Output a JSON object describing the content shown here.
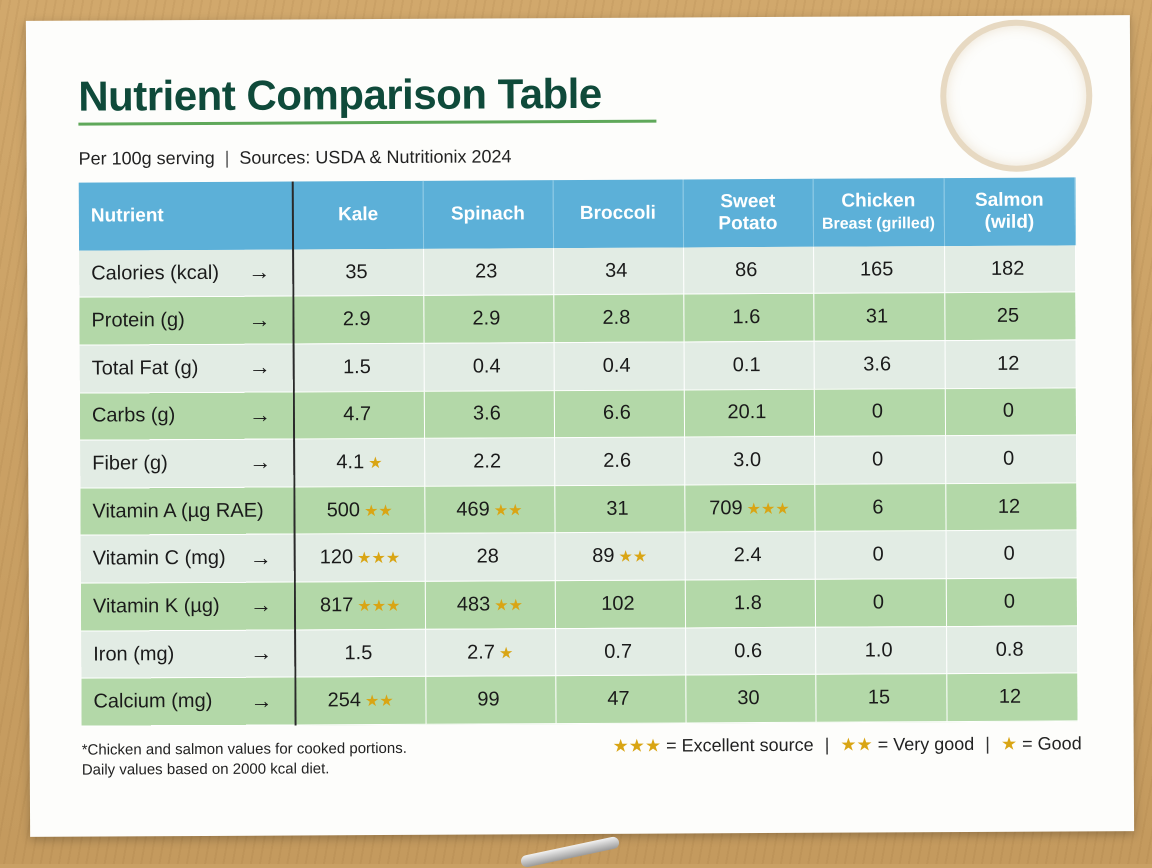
{
  "title": "Nutrient Comparison Table",
  "subtitle": {
    "serving": "Per 100g serving",
    "separator": "|",
    "sources": "Sources: USDA & Nutritionix 2024"
  },
  "table": {
    "header": {
      "nutrient": "Nutrient",
      "kale": "Kale",
      "spinach": "Spinach",
      "broccoli": "Broccoli",
      "sweet_potato_1": "Sweet",
      "sweet_potato_2": "Potato",
      "chicken_1": "Chicken",
      "chicken_2": "Breast (grilled)",
      "salmon_1": "Salmon",
      "salmon_2": "(wild)"
    },
    "arrow": "→",
    "rows": [
      {
        "label": "Calories (kcal)",
        "v": [
          "35",
          "23",
          "34",
          "86",
          "165",
          "182"
        ],
        "s": [
          "",
          "",
          "",
          "",
          "",
          ""
        ]
      },
      {
        "label": "Protein (g)",
        "v": [
          "2.9",
          "2.9",
          "2.8",
          "1.6",
          "31",
          "25"
        ],
        "s": [
          "",
          "",
          "",
          "",
          "",
          ""
        ]
      },
      {
        "label": "Total Fat (g)",
        "v": [
          "1.5",
          "0.4",
          "0.4",
          "0.1",
          "3.6",
          "12"
        ],
        "s": [
          "",
          "",
          "",
          "",
          "",
          ""
        ]
      },
      {
        "label": "Carbs (g)",
        "v": [
          "4.7",
          "3.6",
          "6.6",
          "20.1",
          "0",
          "0"
        ],
        "s": [
          "",
          "",
          "",
          "",
          "",
          ""
        ]
      },
      {
        "label": "Fiber (g)",
        "v": [
          "4.1",
          "2.2",
          "2.6",
          "3.0",
          "0",
          "0"
        ],
        "s": [
          "★",
          "",
          "",
          "",
          "",
          ""
        ]
      },
      {
        "label": "Vitamin A (µg RAE)",
        "v": [
          "500",
          "469",
          "31",
          "709",
          "6",
          "12"
        ],
        "s": [
          "★★",
          "★★",
          "",
          "★★★",
          "",
          ""
        ]
      },
      {
        "label": "Vitamin C (mg)",
        "v": [
          "120",
          "28",
          "89",
          "2.4",
          "0",
          "0"
        ],
        "s": [
          "★★★",
          "",
          "★★",
          "",
          "",
          ""
        ]
      },
      {
        "label": "Vitamin K (µg)",
        "v": [
          "817",
          "483",
          "102",
          "1.8",
          "0",
          "0"
        ],
        "s": [
          "★★★",
          "★★",
          "",
          "",
          "",
          ""
        ]
      },
      {
        "label": "Iron (mg)",
        "v": [
          "1.5",
          "2.7",
          "0.7",
          "0.6",
          "1.0",
          "0.8"
        ],
        "s": [
          "",
          "★",
          "",
          "",
          "",
          ""
        ]
      },
      {
        "label": "Calcium (mg)",
        "v": [
          "254",
          "99",
          "47",
          "30",
          "15",
          "12"
        ],
        "s": [
          "★★",
          "",
          "",
          "",
          "",
          ""
        ]
      }
    ]
  },
  "footnote": {
    "line1": "*Chicken and salmon values for cooked portions.",
    "line2": "Daily values based on 2000 kcal diet."
  },
  "legend": {
    "excellent_stars": "★★★",
    "excellent": "= Excellent source",
    "separator": "|",
    "very_good_stars": "★★",
    "very_good": "= Very good",
    "good_stars": "★",
    "good": "= Good"
  },
  "colors": {
    "title": "#0f4a3a",
    "header_bg": "#5cb0d8",
    "row_light": "#e2ece4",
    "row_green": "#b3d8a8",
    "star": "#d9a514"
  }
}
